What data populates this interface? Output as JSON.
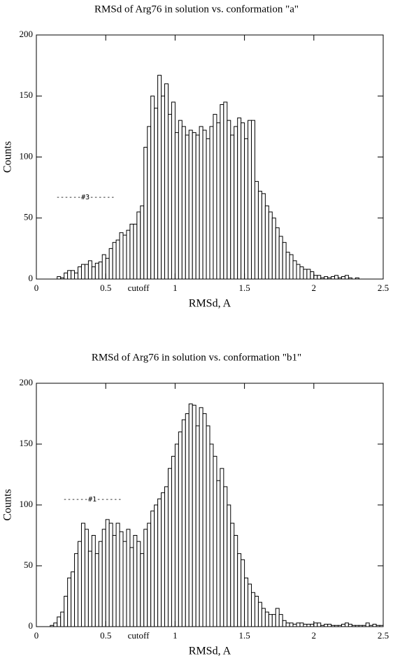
{
  "chart_data": [
    {
      "type": "histogram",
      "title": "RMSd of Arg76 in solution vs. conformation \"a\"",
      "x_label": "RMSd, A",
      "y_label": "Counts",
      "annotations": [
        "------#3------",
        "cutoff"
      ],
      "bins": [
        0,
        0.025,
        0.05,
        0.075,
        0.1,
        0.125,
        0.15,
        0.175,
        0.2,
        0.225,
        0.25,
        0.275,
        0.3,
        0.325,
        0.35,
        0.375,
        0.4,
        0.425,
        0.45,
        0.475,
        0.5,
        0.525,
        0.55,
        0.575,
        0.6,
        0.625,
        0.65,
        0.675,
        0.7,
        0.725,
        0.75,
        0.775,
        0.8,
        0.825,
        0.85,
        0.875,
        0.9,
        0.925,
        0.95,
        0.975,
        1,
        1.025,
        1.05,
        1.075,
        1.1,
        1.125,
        1.15,
        1.175,
        1.2,
        1.225,
        1.25,
        1.275,
        1.3,
        1.325,
        1.35,
        1.375,
        1.4,
        1.425,
        1.45,
        1.475,
        1.5,
        1.525,
        1.55,
        1.575,
        1.6,
        1.625,
        1.65,
        1.675,
        1.7,
        1.725,
        1.75,
        1.775,
        1.8,
        1.825,
        1.85,
        1.875,
        1.9,
        1.925,
        1.95,
        1.975,
        2,
        2.025,
        2.05,
        2.075,
        2.1,
        2.125,
        2.15,
        2.175,
        2.2,
        2.225,
        2.25,
        2.275,
        2.3,
        2.325,
        2.35,
        2.375,
        2.4,
        2.425,
        2.45,
        2.475,
        2.5
      ],
      "values": [
        0,
        0,
        0,
        0,
        0,
        0,
        2,
        1,
        5,
        7,
        7,
        5,
        10,
        12,
        12,
        15,
        10,
        13,
        14,
        20,
        17,
        25,
        30,
        32,
        38,
        36,
        40,
        45,
        45,
        55,
        60,
        108,
        125,
        150,
        140,
        167,
        150,
        160,
        135,
        145,
        120,
        130,
        125,
        118,
        122,
        120,
        118,
        125,
        122,
        115,
        125,
        135,
        128,
        143,
        145,
        130,
        118,
        125,
        132,
        128,
        115,
        130,
        130,
        80,
        72,
        70,
        60,
        55,
        50,
        42,
        35,
        30,
        22,
        20,
        15,
        12,
        10,
        8,
        8,
        6,
        3,
        3,
        1,
        2,
        1,
        2,
        3,
        1,
        2,
        3,
        1,
        0,
        1,
        0,
        0,
        0,
        0,
        0,
        0,
        0
      ],
      "color": "#ffffff",
      "xlim": [
        0,
        2.5
      ],
      "ylim": [
        0,
        200
      ],
      "xticks": [
        0,
        0.5,
        1,
        1.5,
        2,
        2.5
      ],
      "yticks": [
        0,
        50,
        100,
        150,
        200
      ]
    },
    {
      "type": "histogram",
      "title": "RMSd of Arg76 in solution vs. conformation \"b1\"",
      "x_label": "RMSd, A",
      "y_label": "Counts",
      "annotations": [
        "------#1------",
        "cutoff"
      ],
      "bins": [
        0,
        0.025,
        0.05,
        0.075,
        0.1,
        0.125,
        0.15,
        0.175,
        0.2,
        0.225,
        0.25,
        0.275,
        0.3,
        0.325,
        0.35,
        0.375,
        0.4,
        0.425,
        0.45,
        0.475,
        0.5,
        0.525,
        0.55,
        0.575,
        0.6,
        0.625,
        0.65,
        0.675,
        0.7,
        0.725,
        0.75,
        0.775,
        0.8,
        0.825,
        0.85,
        0.875,
        0.9,
        0.925,
        0.95,
        0.975,
        1,
        1.025,
        1.05,
        1.075,
        1.1,
        1.125,
        1.15,
        1.175,
        1.2,
        1.225,
        1.25,
        1.275,
        1.3,
        1.325,
        1.35,
        1.375,
        1.4,
        1.425,
        1.45,
        1.475,
        1.5,
        1.525,
        1.55,
        1.575,
        1.6,
        1.625,
        1.65,
        1.675,
        1.7,
        1.725,
        1.75,
        1.775,
        1.8,
        1.825,
        1.85,
        1.875,
        1.9,
        1.925,
        1.95,
        1.975,
        2,
        2.025,
        2.05,
        2.075,
        2.1,
        2.125,
        2.15,
        2.175,
        2.2,
        2.225,
        2.25,
        2.275,
        2.3,
        2.325,
        2.35,
        2.375,
        2.4,
        2.425,
        2.45,
        2.475,
        2.5
      ],
      "values": [
        0,
        0,
        0,
        0,
        1,
        3,
        8,
        12,
        25,
        40,
        45,
        60,
        70,
        85,
        80,
        62,
        75,
        60,
        70,
        80,
        88,
        85,
        75,
        85,
        78,
        70,
        80,
        65,
        75,
        70,
        60,
        80,
        85,
        95,
        100,
        105,
        110,
        115,
        130,
        140,
        150,
        160,
        170,
        175,
        183,
        182,
        165,
        180,
        175,
        165,
        150,
        140,
        120,
        130,
        115,
        100,
        85,
        75,
        60,
        55,
        40,
        35,
        28,
        25,
        20,
        15,
        12,
        10,
        10,
        15,
        10,
        5,
        3,
        3,
        2,
        3,
        3,
        2,
        2,
        2,
        3,
        3,
        1,
        2,
        2,
        1,
        1,
        1,
        2,
        3,
        2,
        1,
        1,
        1,
        1,
        3,
        1,
        2,
        1,
        1
      ],
      "color": "#ffffff",
      "xlim": [
        0,
        2.5
      ],
      "ylim": [
        0,
        200
      ],
      "xticks": [
        0,
        0.5,
        1,
        1.5,
        2,
        2.5
      ],
      "yticks": [
        0,
        50,
        100,
        150,
        200
      ]
    }
  ]
}
